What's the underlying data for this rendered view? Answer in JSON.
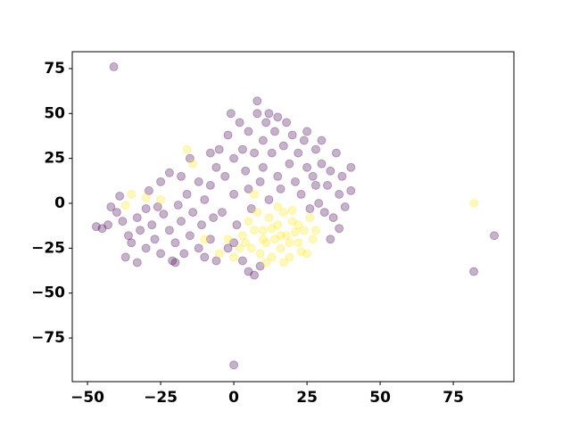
{
  "chart_data": {
    "type": "scatter",
    "xlim": [
      -55.2,
      95.7
    ],
    "ylim": [
      -99.3,
      84.4
    ],
    "xticks": [
      {
        "value": -50,
        "label": "−50"
      },
      {
        "value": -25,
        "label": "−25"
      },
      0,
      25,
      50,
      75
    ],
    "yticks": [
      {
        "value": -75,
        "label": "−75"
      },
      {
        "value": -50,
        "label": "−50"
      },
      {
        "value": -25,
        "label": "−25"
      },
      0,
      25,
      50,
      75
    ],
    "alpha": 0.3,
    "series": [
      {
        "color": "#440154",
        "x": [
          -47,
          -45,
          -43,
          -42,
          -40,
          -38,
          -36,
          -35,
          -33,
          -32,
          -30,
          -30,
          -28,
          -27,
          -25,
          -24,
          -22,
          -21,
          -20,
          -18,
          -17,
          -15,
          -14,
          -12,
          -11,
          -10,
          -8,
          -37,
          -33,
          -26,
          -19,
          -39,
          -29,
          -25,
          -22,
          -18,
          -16,
          -15,
          -10,
          -8,
          -6,
          -5,
          -4,
          -3,
          -2,
          0,
          0,
          1,
          2,
          3,
          4,
          5,
          5,
          6,
          7,
          8,
          9,
          10,
          10,
          11,
          12,
          13,
          14,
          15,
          16,
          17,
          18,
          19,
          20,
          21,
          22,
          23,
          24,
          25,
          26,
          27,
          28,
          29,
          30,
          31,
          32,
          33,
          34,
          35,
          36,
          37,
          38,
          40,
          40,
          36,
          33,
          -2,
          0,
          3,
          5,
          7,
          9,
          -6,
          -12,
          -8,
          -1,
          12,
          8,
          -41,
          0,
          89,
          82,
          -20,
          -7,
          30,
          25,
          15,
          28
        ],
        "y": [
          -13,
          -14,
          -12,
          -2,
          -5,
          -10,
          -18,
          -22,
          -8,
          -15,
          -25,
          -3,
          -12,
          -20,
          -28,
          -6,
          -15,
          -32,
          -22,
          -10,
          -28,
          -18,
          -5,
          -25,
          -12,
          -30,
          -20,
          -30,
          -33,
          -2,
          -1,
          4,
          7,
          12,
          17,
          15,
          5,
          25,
          2,
          10,
          20,
          30,
          -5,
          15,
          38,
          25,
          5,
          -12,
          45,
          30,
          18,
          8,
          40,
          -3,
          28,
          50,
          12,
          35,
          20,
          45,
          2,
          28,
          40,
          15,
          8,
          32,
          45,
          22,
          38,
          12,
          28,
          5,
          35,
          20,
          -3,
          15,
          30,
          0,
          22,
          -5,
          10,
          18,
          -8,
          28,
          5,
          15,
          -2,
          20,
          7,
          -14,
          -20,
          -25,
          -22,
          -32,
          -38,
          -40,
          -35,
          -32,
          12,
          28,
          50,
          50,
          57,
          76,
          -90,
          -18,
          -38,
          -33,
          -8,
          35,
          40,
          48,
          10
        ]
      },
      {
        "color": "#fde725",
        "x": [
          5,
          8,
          10,
          12,
          14,
          15,
          16,
          18,
          20,
          22,
          24,
          25,
          26,
          27,
          3,
          6,
          9,
          11,
          13,
          17,
          19,
          21,
          23,
          4,
          7,
          10,
          13,
          16,
          19,
          22,
          2,
          28,
          11,
          17,
          -5,
          -2,
          -16,
          -14,
          -35,
          -30,
          -25,
          -37,
          7,
          82,
          -10,
          0,
          15,
          20
        ],
        "y": [
          -10,
          -5,
          -15,
          -8,
          -20,
          -12,
          -25,
          -18,
          -10,
          -22,
          -15,
          -28,
          -8,
          -20,
          -18,
          -25,
          -28,
          -22,
          -30,
          -5,
          -30,
          -16,
          -27,
          -22,
          -15,
          -20,
          -14,
          -18,
          -22,
          -12,
          -25,
          -15,
          -33,
          -33,
          -28,
          -20,
          30,
          22,
          5,
          3,
          2,
          -1,
          5,
          0,
          -20,
          -30,
          -2,
          -4
        ]
      }
    ]
  }
}
